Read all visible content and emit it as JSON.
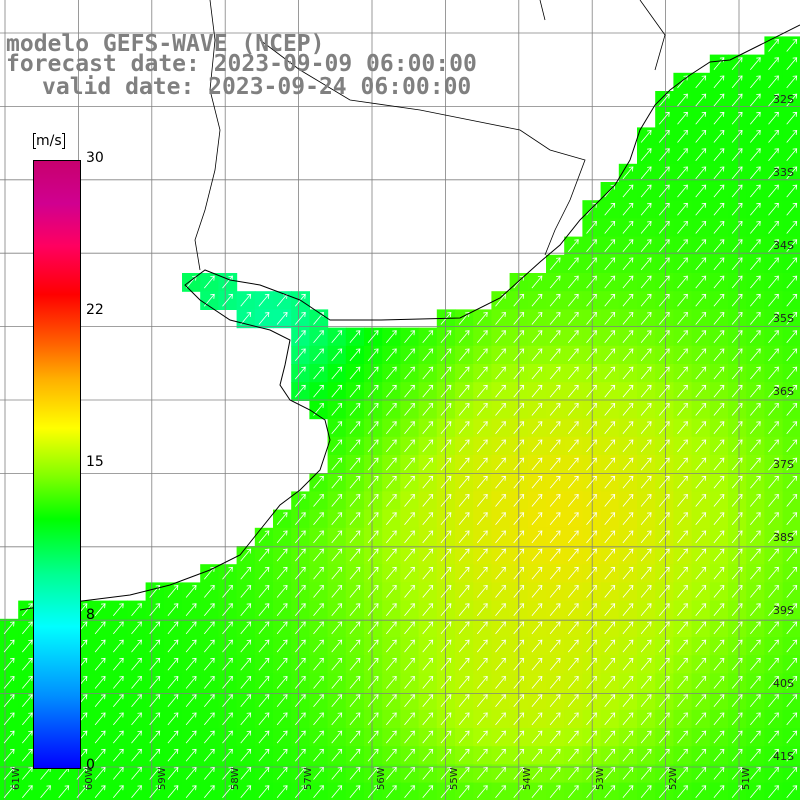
{
  "title": {
    "line1": "modelo GEFS-WAVE (NCEP)",
    "line2": "forecast date: 2023-09-09 06:00:00",
    "line3": "valid date: 2023-09-24 06:00:00"
  },
  "colorbar": {
    "unit": "m/s",
    "ticks": [
      "30",
      "22",
      "15",
      "8",
      "0"
    ]
  },
  "lat_labels": [
    "32S",
    "33S",
    "34S",
    "35S",
    "36S",
    "37S",
    "38S",
    "39S",
    "40S",
    "41S"
  ],
  "lon_labels": [
    "61W",
    "60W",
    "59W",
    "58W",
    "57W",
    "56W",
    "55W",
    "54W",
    "53W",
    "52W",
    "51W"
  ],
  "field": {
    "variable": "wind speed with direction arrows",
    "typical_direction": "toward northeast",
    "speed_range_ms": [
      8,
      18
    ]
  }
}
